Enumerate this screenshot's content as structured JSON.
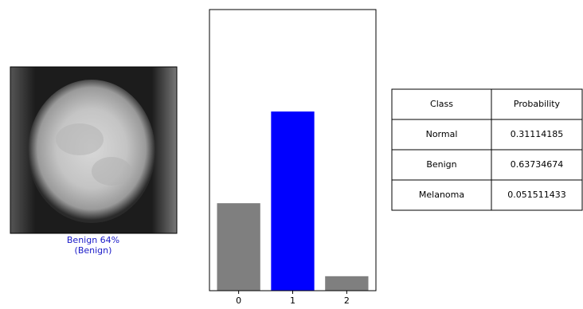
{
  "chart_data": {
    "type": "bar",
    "categories": [
      "0",
      "1",
      "2"
    ],
    "values": [
      0.31114185,
      0.63734674,
      0.051511433
    ],
    "colors": [
      "#7f7f7f",
      "#0000ff",
      "#7f7f7f"
    ],
    "ylim": [
      0,
      1
    ]
  },
  "image_caption": {
    "lines": [
      "Benign 64%",
      "(Benign)"
    ]
  },
  "table": {
    "header": [
      "Class",
      "Probability"
    ],
    "rows": [
      [
        "Normal",
        "0.31114185"
      ],
      [
        "Benign",
        "0.63734674"
      ],
      [
        "Melanoma",
        "0.051511433"
      ]
    ]
  }
}
